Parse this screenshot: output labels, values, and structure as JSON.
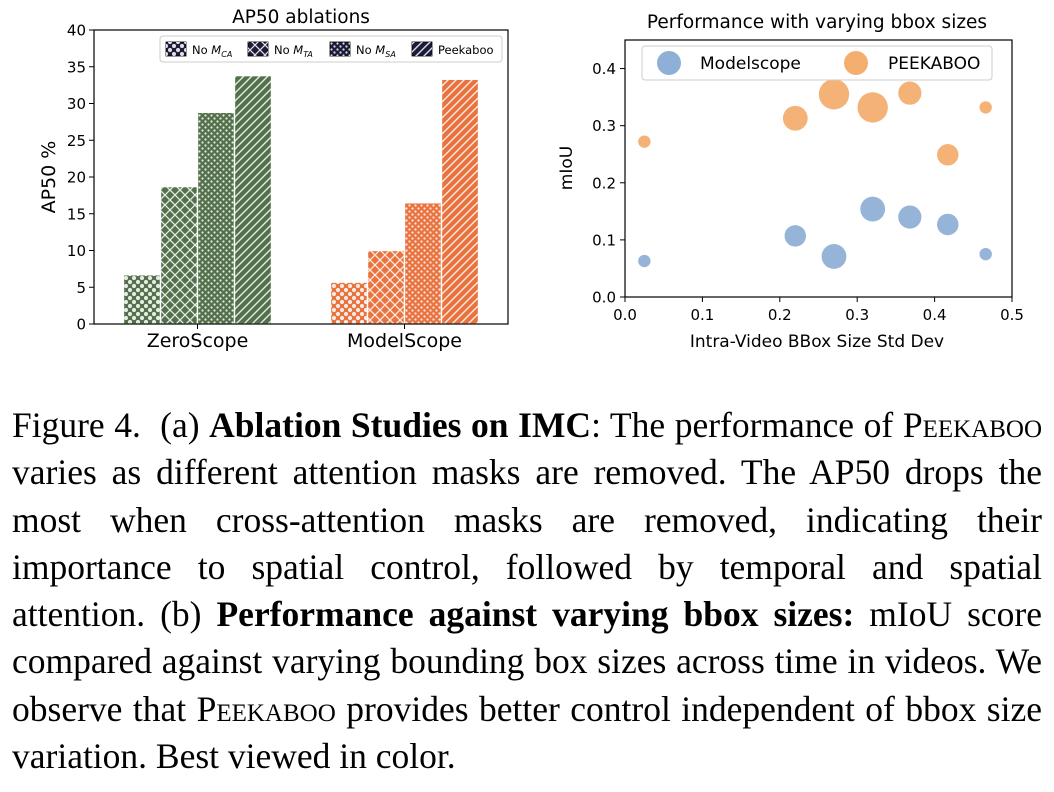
{
  "left_chart": {
    "type": "bar",
    "title": "AP50 ablations",
    "ylabel": "AP50 %",
    "xlabel": "",
    "ylim": [
      0,
      40
    ],
    "yticks": [
      0,
      5,
      10,
      15,
      20,
      25,
      30,
      35,
      40
    ],
    "categories": [
      "ZeroScope",
      "ModelScope"
    ],
    "category_colors": [
      "#52704a",
      "#e8733f"
    ],
    "legend_position": "top-right",
    "series": [
      {
        "name": "No M_CA",
        "legend_base": "No M",
        "legend_sub": "CA",
        "pattern": "dots-large",
        "values": [
          6.7,
          5.7
        ]
      },
      {
        "name": "No M_TA",
        "legend_base": "No M",
        "legend_sub": "TA",
        "pattern": "crosshatch",
        "values": [
          18.7,
          10.0
        ]
      },
      {
        "name": "No M_SA",
        "legend_base": "No M",
        "legend_sub": "SA",
        "pattern": "dots-small",
        "values": [
          28.8,
          16.5
        ]
      },
      {
        "name": "Peekaboo",
        "legend_base": "Peekaboo",
        "legend_sub": "",
        "pattern": "diagonal",
        "values": [
          33.8,
          33.3
        ]
      }
    ]
  },
  "right_chart": {
    "type": "scatter",
    "title": "Performance with varying bbox sizes",
    "xlabel": "Intra-Video BBox Size Std Dev",
    "ylabel": "mIoU",
    "xlim": [
      0,
      0.5
    ],
    "ylim": [
      0,
      0.45
    ],
    "xticks": [
      "0.0",
      "0.1",
      "0.2",
      "0.3",
      "0.4",
      "0.5"
    ],
    "yticks": [
      "0.0",
      "0.1",
      "0.2",
      "0.3",
      "0.4"
    ],
    "legend_position": "top",
    "series": [
      {
        "name": "Modelscope",
        "color": "#8fb0d6",
        "points": [
          {
            "x": 0.025,
            "y": 0.063,
            "size": 1
          },
          {
            "x": 0.22,
            "y": 0.107,
            "size": 3
          },
          {
            "x": 0.27,
            "y": 0.071,
            "size": 4
          },
          {
            "x": 0.32,
            "y": 0.154,
            "size": 4
          },
          {
            "x": 0.368,
            "y": 0.14,
            "size": 3.5
          },
          {
            "x": 0.417,
            "y": 0.127,
            "size": 3
          },
          {
            "x": 0.466,
            "y": 0.075,
            "size": 1
          }
        ]
      },
      {
        "name": "PEEKABOO",
        "color": "#f4ae70",
        "points": [
          {
            "x": 0.025,
            "y": 0.272,
            "size": 1
          },
          {
            "x": 0.22,
            "y": 0.313,
            "size": 4
          },
          {
            "x": 0.27,
            "y": 0.355,
            "size": 6
          },
          {
            "x": 0.32,
            "y": 0.332,
            "size": 6
          },
          {
            "x": 0.368,
            "y": 0.357,
            "size": 3.5
          },
          {
            "x": 0.417,
            "y": 0.249,
            "size": 3
          },
          {
            "x": 0.466,
            "y": 0.332,
            "size": 1
          }
        ]
      }
    ]
  },
  "caption": {
    "label": "Figure 4.",
    "part_a_prefix": "(a)",
    "part_a_bold": "Ablation Studies on IMC",
    "part_a_text_1": ": The performance of ",
    "method_name": "Peekaboo",
    "part_a_text_2": " varies as different attention masks are removed. The AP50 drops the most when cross-attention masks are removed, indicating their importance to spatial control, followed by temporal and spatial attention. ",
    "part_b_prefix": "(b)",
    "part_b_bold": "Performance against varying bbox sizes:",
    "part_b_text_1": " mIoU score compared against varying bounding box sizes across time in videos. We observe that ",
    "part_b_text_2": " provides better control independent of bbox size variation. Best viewed in color."
  }
}
